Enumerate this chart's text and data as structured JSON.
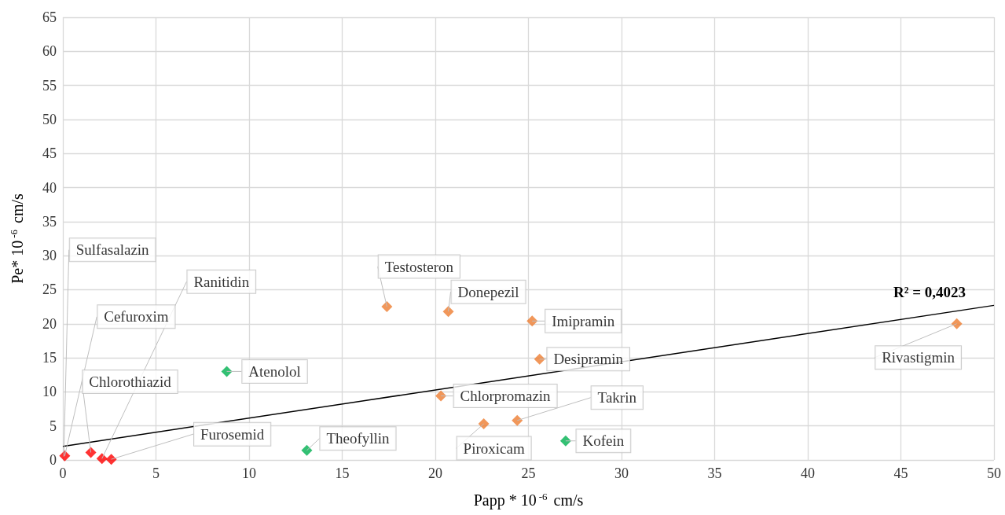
{
  "chart_data": {
    "type": "scatter",
    "xlabel": "Papp * 10$^{-6}$ cm/s",
    "ylabel": "Pe* 10$^{-6}$ cm/s",
    "xlim": [
      0,
      50
    ],
    "xticks": [
      0,
      5,
      10,
      15,
      20,
      25,
      30,
      35,
      40,
      45,
      50
    ],
    "ylim": [
      0,
      65
    ],
    "yticks": [
      0,
      5,
      10,
      15,
      20,
      25,
      30,
      35,
      40,
      45,
      50,
      55,
      60,
      65
    ],
    "grid": true,
    "marker": "diamond",
    "series": [
      {
        "color": "#ff0000",
        "x": [
          0.1,
          1.5,
          2.1,
          2.6
        ],
        "values": [
          0.6,
          1.1,
          0.2,
          0.1
        ]
      },
      {
        "color": "#00b050",
        "x": [
          8.8,
          13.1,
          27.0
        ],
        "values": [
          13.0,
          1.4,
          2.8
        ]
      },
      {
        "color": "#ed7d31",
        "x": [
          17.4,
          20.7,
          25.2,
          25.6,
          20.3,
          22.6,
          24.4,
          48.0
        ],
        "values": [
          22.5,
          21.8,
          20.4,
          14.8,
          9.4,
          5.3,
          5.8,
          20.0
        ]
      },
      {
        "type": "line",
        "color": "#000000",
        "marker": "none",
        "x": [
          0,
          50
        ],
        "values": [
          2.0,
          22.7
        ]
      }
    ],
    "annotations": [
      {
        "text": "Sulfasalazin",
        "x": 0.05,
        "y": 0.5
      },
      {
        "text": "Cefuroxim",
        "x": 0.1,
        "y": 0.6
      },
      {
        "text": "Chlorothiazid",
        "x": 1.5,
        "y": 1.1
      },
      {
        "text": "Ranitidin",
        "x": 2.1,
        "y": 0.2
      },
      {
        "text": "Furosemid",
        "x": 2.6,
        "y": 0.1
      },
      {
        "text": "Atenolol",
        "x": 8.8,
        "y": 13.0
      },
      {
        "text": "Theofyllin",
        "x": 13.1,
        "y": 1.4
      },
      {
        "text": "Kofein",
        "x": 27.0,
        "y": 2.8
      },
      {
        "text": "Testosteron",
        "x": 17.4,
        "y": 22.5
      },
      {
        "text": "Donepezil",
        "x": 20.7,
        "y": 21.8
      },
      {
        "text": "Imipramin",
        "x": 25.2,
        "y": 20.4
      },
      {
        "text": "Desipramin",
        "x": 25.6,
        "y": 14.8
      },
      {
        "text": "Chlorpromazin",
        "x": 20.3,
        "y": 9.4
      },
      {
        "text": "Piroxicam",
        "x": 22.6,
        "y": 5.3
      },
      {
        "text": "Takrin",
        "x": 24.4,
        "y": 5.8
      },
      {
        "text": "Rivastigmin",
        "x": 48.0,
        "y": 20.0
      },
      "R² = 0,4023"
    ]
  }
}
